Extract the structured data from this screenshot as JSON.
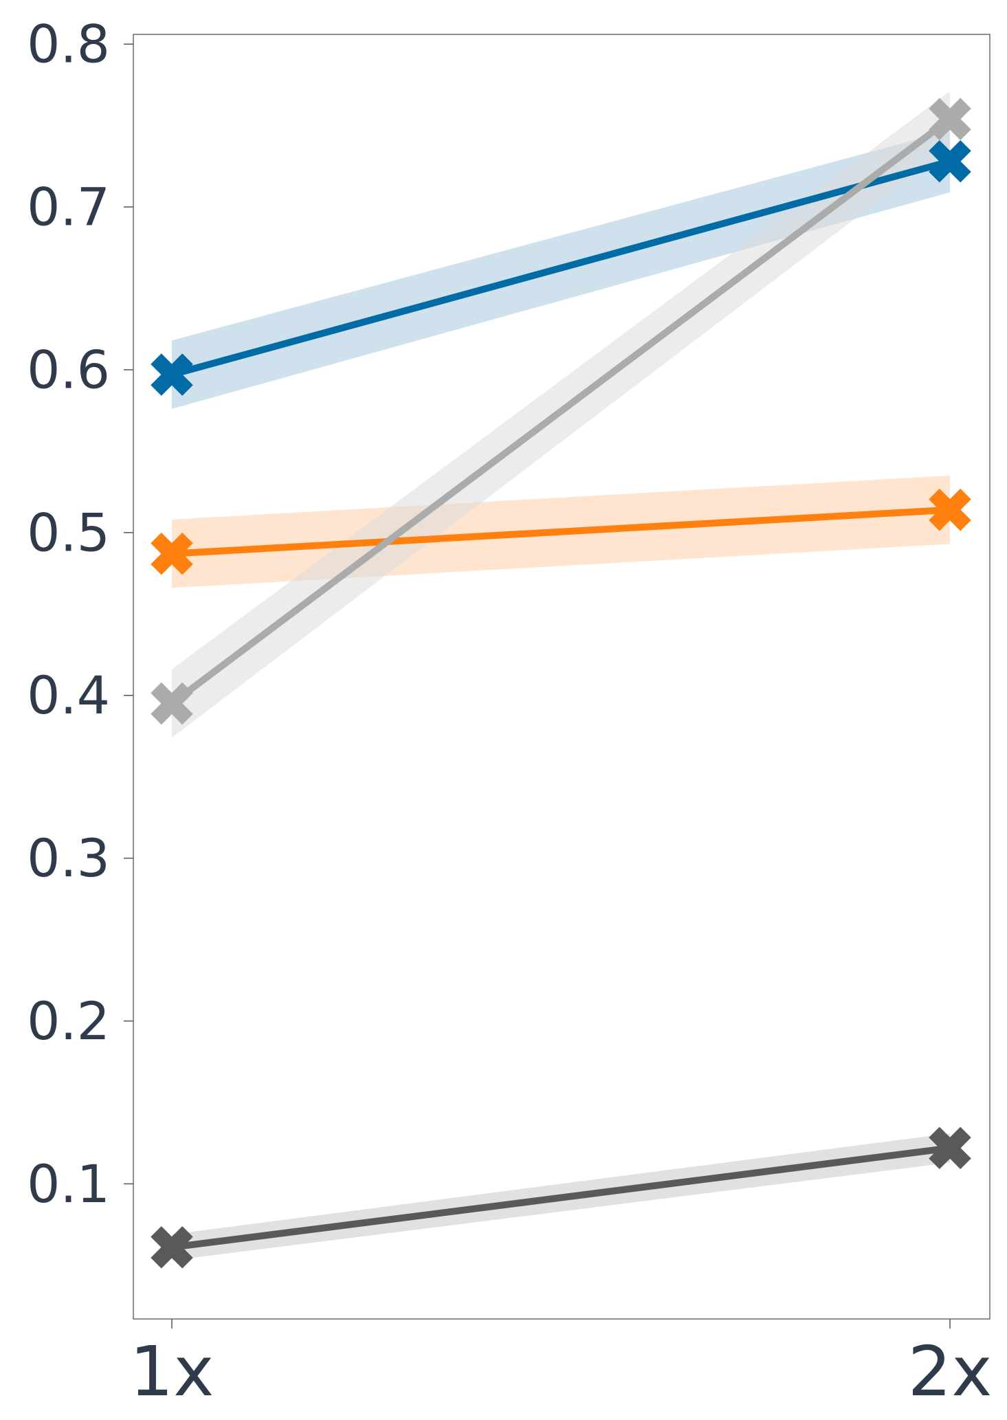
{
  "chart_data": {
    "type": "line",
    "title": "",
    "xlabel": "",
    "ylabel": "",
    "categories": [
      "1x",
      "2x"
    ],
    "y_ticks": [
      "0.1",
      "0.2",
      "0.3",
      "0.4",
      "0.5",
      "0.6",
      "0.7",
      "0.8"
    ],
    "ylim": [
      0.017,
      0.806
    ],
    "grid": false,
    "legend": "none",
    "series": [
      {
        "color": "#006BA4",
        "band_color": "#A6C8DD",
        "marker": "x",
        "values": [
          0.597,
          0.728
        ],
        "lower": [
          0.576,
          0.709
        ],
        "upper": [
          0.618,
          0.747
        ]
      },
      {
        "color": "#FF800E",
        "band_color": "#FFD0A8",
        "marker": "x",
        "values": [
          0.487,
          0.514
        ],
        "lower": [
          0.466,
          0.493
        ],
        "upper": [
          0.508,
          0.535
        ]
      },
      {
        "color": "#ABABAB",
        "band_color": "#DCDCDC",
        "marker": "x",
        "values": [
          0.395,
          0.754
        ],
        "lower": [
          0.374,
          0.737
        ],
        "upper": [
          0.416,
          0.771
        ]
      },
      {
        "color": "#595959",
        "band_color": "#C8C8C8",
        "marker": "x",
        "values": [
          0.061,
          0.122
        ],
        "lower": [
          0.053,
          0.113
        ],
        "upper": [
          0.069,
          0.131
        ]
      }
    ]
  }
}
